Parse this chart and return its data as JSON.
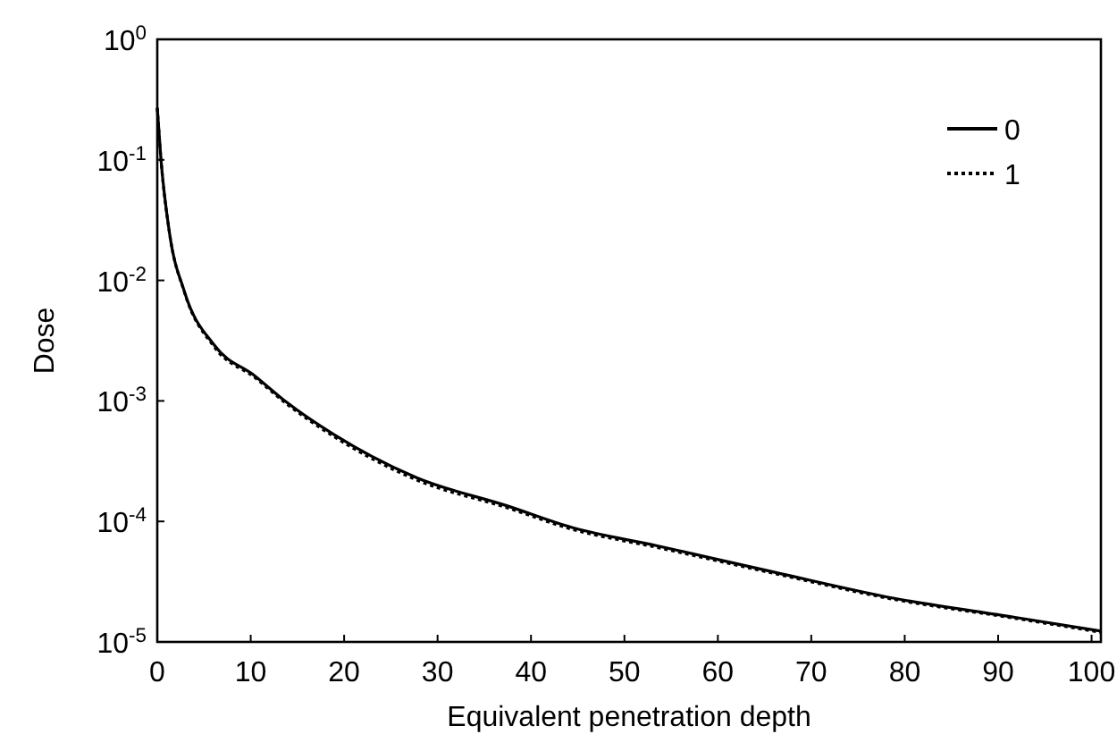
{
  "chart_data": {
    "type": "line",
    "xlabel": "Equivalent penetration depth",
    "ylabel": "Dose",
    "log": "y",
    "xlim": [
      0,
      101
    ],
    "ylim": [
      1e-05,
      1
    ],
    "xticks": [
      0,
      10,
      20,
      30,
      40,
      50,
      60,
      70,
      80,
      90,
      100
    ],
    "yticks": [
      {
        "value": 1e-05,
        "label": "10$^{-5}$"
      },
      {
        "value": 0.0001,
        "label": "10$^{-4}$"
      },
      {
        "value": 0.001,
        "label": "10$^{-3}$"
      },
      {
        "value": 0.01,
        "label": "10$^{-2}$"
      },
      {
        "value": 0.1,
        "label": "10$^{-1}$"
      },
      {
        "value": 1,
        "label": "10$^{0}$"
      }
    ],
    "grid": false,
    "legend": "top right",
    "series": [
      {
        "name": "0",
        "color": "#000000",
        "line_style": "solid",
        "x": [
          0,
          0.4,
          1.3,
          2.9,
          6.1,
          10.5,
          13.8,
          19,
          27.8,
          37.4,
          44.4,
          53.4,
          66,
          78.9,
          91.8,
          101
        ],
        "values": [
          0.27,
          0.1,
          0.025,
          0.0081,
          0.0029,
          0.0016,
          0.00098,
          0.00052,
          0.00023,
          0.000135,
          8.9e-05,
          6.3e-05,
          3.8e-05,
          2.3e-05,
          1.6e-05,
          1.23e-05
        ]
      },
      {
        "name": "1",
        "color": "#000000",
        "line_style": "dotted",
        "x": [
          0,
          0.4,
          1.3,
          2.9,
          6.1,
          10.5,
          13.8,
          19,
          27.8,
          37.4,
          44.4,
          53.4,
          66,
          78.9,
          91.8,
          101
        ],
        "values": [
          0.27,
          0.1,
          0.025,
          0.008,
          0.0028,
          0.00155,
          0.00095,
          0.0005,
          0.00022,
          0.00013,
          8.6e-05,
          6.1e-05,
          3.7e-05,
          2.25e-05,
          1.57e-05,
          1.2e-05
        ]
      }
    ]
  }
}
